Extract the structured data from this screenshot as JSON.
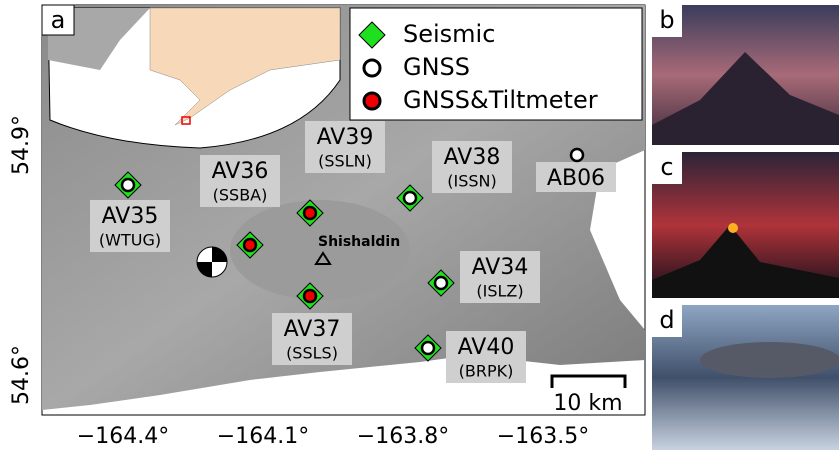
{
  "panels": {
    "a": "a",
    "b": "b",
    "c": "c",
    "d": "d"
  },
  "legend": [
    "Seismic",
    "GNSS",
    "GNSS&Tiltmeter"
  ],
  "volcano": "Shishaldin",
  "scale_bar": "10 km",
  "x_ticks": [
    "−164.4°",
    "−164.1°",
    "−163.8°",
    "−163.5°"
  ],
  "y_ticks": [
    "54.9°",
    "54.6°"
  ],
  "stations": [
    {
      "name": "AV35",
      "code": "(WTUG)"
    },
    {
      "name": "AV36",
      "code": "(SSBA)"
    },
    {
      "name": "AV39",
      "code": "(SSLN)"
    },
    {
      "name": "AV38",
      "code": "(ISSN)"
    },
    {
      "name": "AB06"
    },
    {
      "name": "AV34",
      "code": "(ISLZ)"
    },
    {
      "name": "AV37",
      "code": "(SSLS)"
    },
    {
      "name": "AV40",
      "code": "(BRPK)"
    }
  ]
}
